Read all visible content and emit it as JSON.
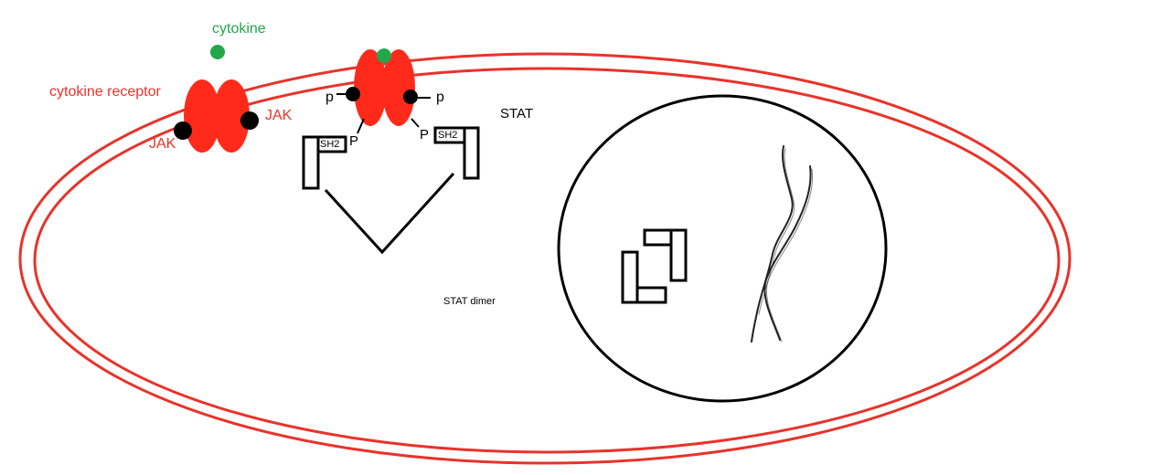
{
  "labels": {
    "cytokine": "cytokine",
    "cytokine_receptor": "cytokine receptor",
    "jak_left": "JAK",
    "jak_right": "JAK",
    "p_upper_left": "p",
    "p_upper_right": "p",
    "p_lower_left": "P",
    "p_lower_right": "P",
    "sh2_left": "SH2",
    "sh2_right": "SH2",
    "stat": "STAT",
    "stat_dimer": "STAT dimer"
  },
  "colors": {
    "membrane": "#e8332a",
    "receptor": "#ff2a1a",
    "cytokine": "#22a84a",
    "cytokine_text": "#22a84a",
    "receptor_text": "#e8332a",
    "jak": "#000000",
    "outline": "#000000"
  }
}
